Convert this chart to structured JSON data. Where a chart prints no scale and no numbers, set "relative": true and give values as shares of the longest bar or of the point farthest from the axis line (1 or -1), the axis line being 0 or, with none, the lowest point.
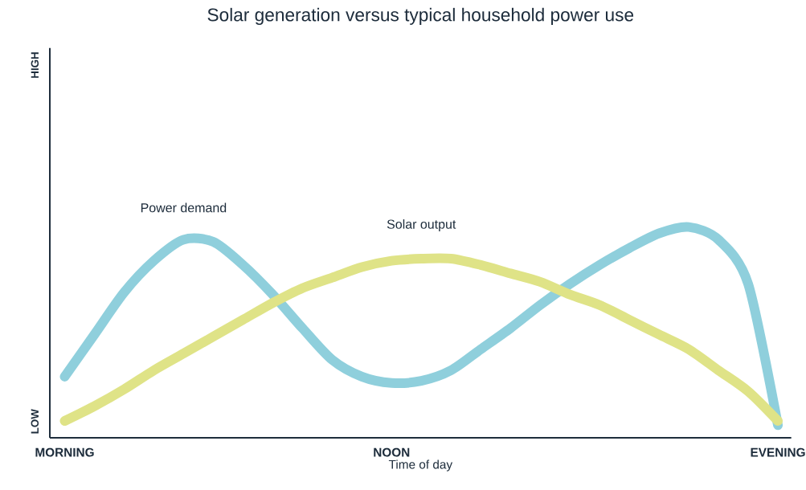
{
  "chart_data": {
    "type": "line",
    "title": "Solar generation versus typical household power use",
    "xlabel": "Time of day",
    "relative": true,
    "legend": false,
    "marker": "none",
    "line_style": "solid",
    "categories": [
      "MORNING",
      null,
      null,
      null,
      null,
      null,
      null,
      null,
      null,
      null,
      null,
      "NOON",
      null,
      null,
      null,
      null,
      null,
      null,
      null,
      null,
      null,
      null,
      null,
      null,
      "EVENING"
    ],
    "series": [
      {
        "name": "Power demand",
        "color": "#8fcfdc",
        "values": [
          0.29,
          0.49,
          0.69,
          0.84,
          0.94,
          0.93,
          0.82,
          0.68,
          0.52,
          0.37,
          0.29,
          0.26,
          0.27,
          0.32,
          0.42,
          0.52,
          0.63,
          0.73,
          0.82,
          0.9,
          0.97,
          1.0,
          0.94,
          0.73,
          0.06
        ]
      },
      {
        "name": "Solar output",
        "color": "#dfe387",
        "values": [
          0.08,
          0.15,
          0.23,
          0.32,
          0.4,
          0.48,
          0.56,
          0.64,
          0.71,
          0.76,
          0.81,
          0.84,
          0.85,
          0.85,
          0.82,
          0.78,
          0.74,
          0.68,
          0.63,
          0.56,
          0.49,
          0.42,
          0.32,
          0.22,
          0.08
        ]
      }
    ],
    "annotations": [
      "HIGH",
      "LOW"
    ]
  }
}
